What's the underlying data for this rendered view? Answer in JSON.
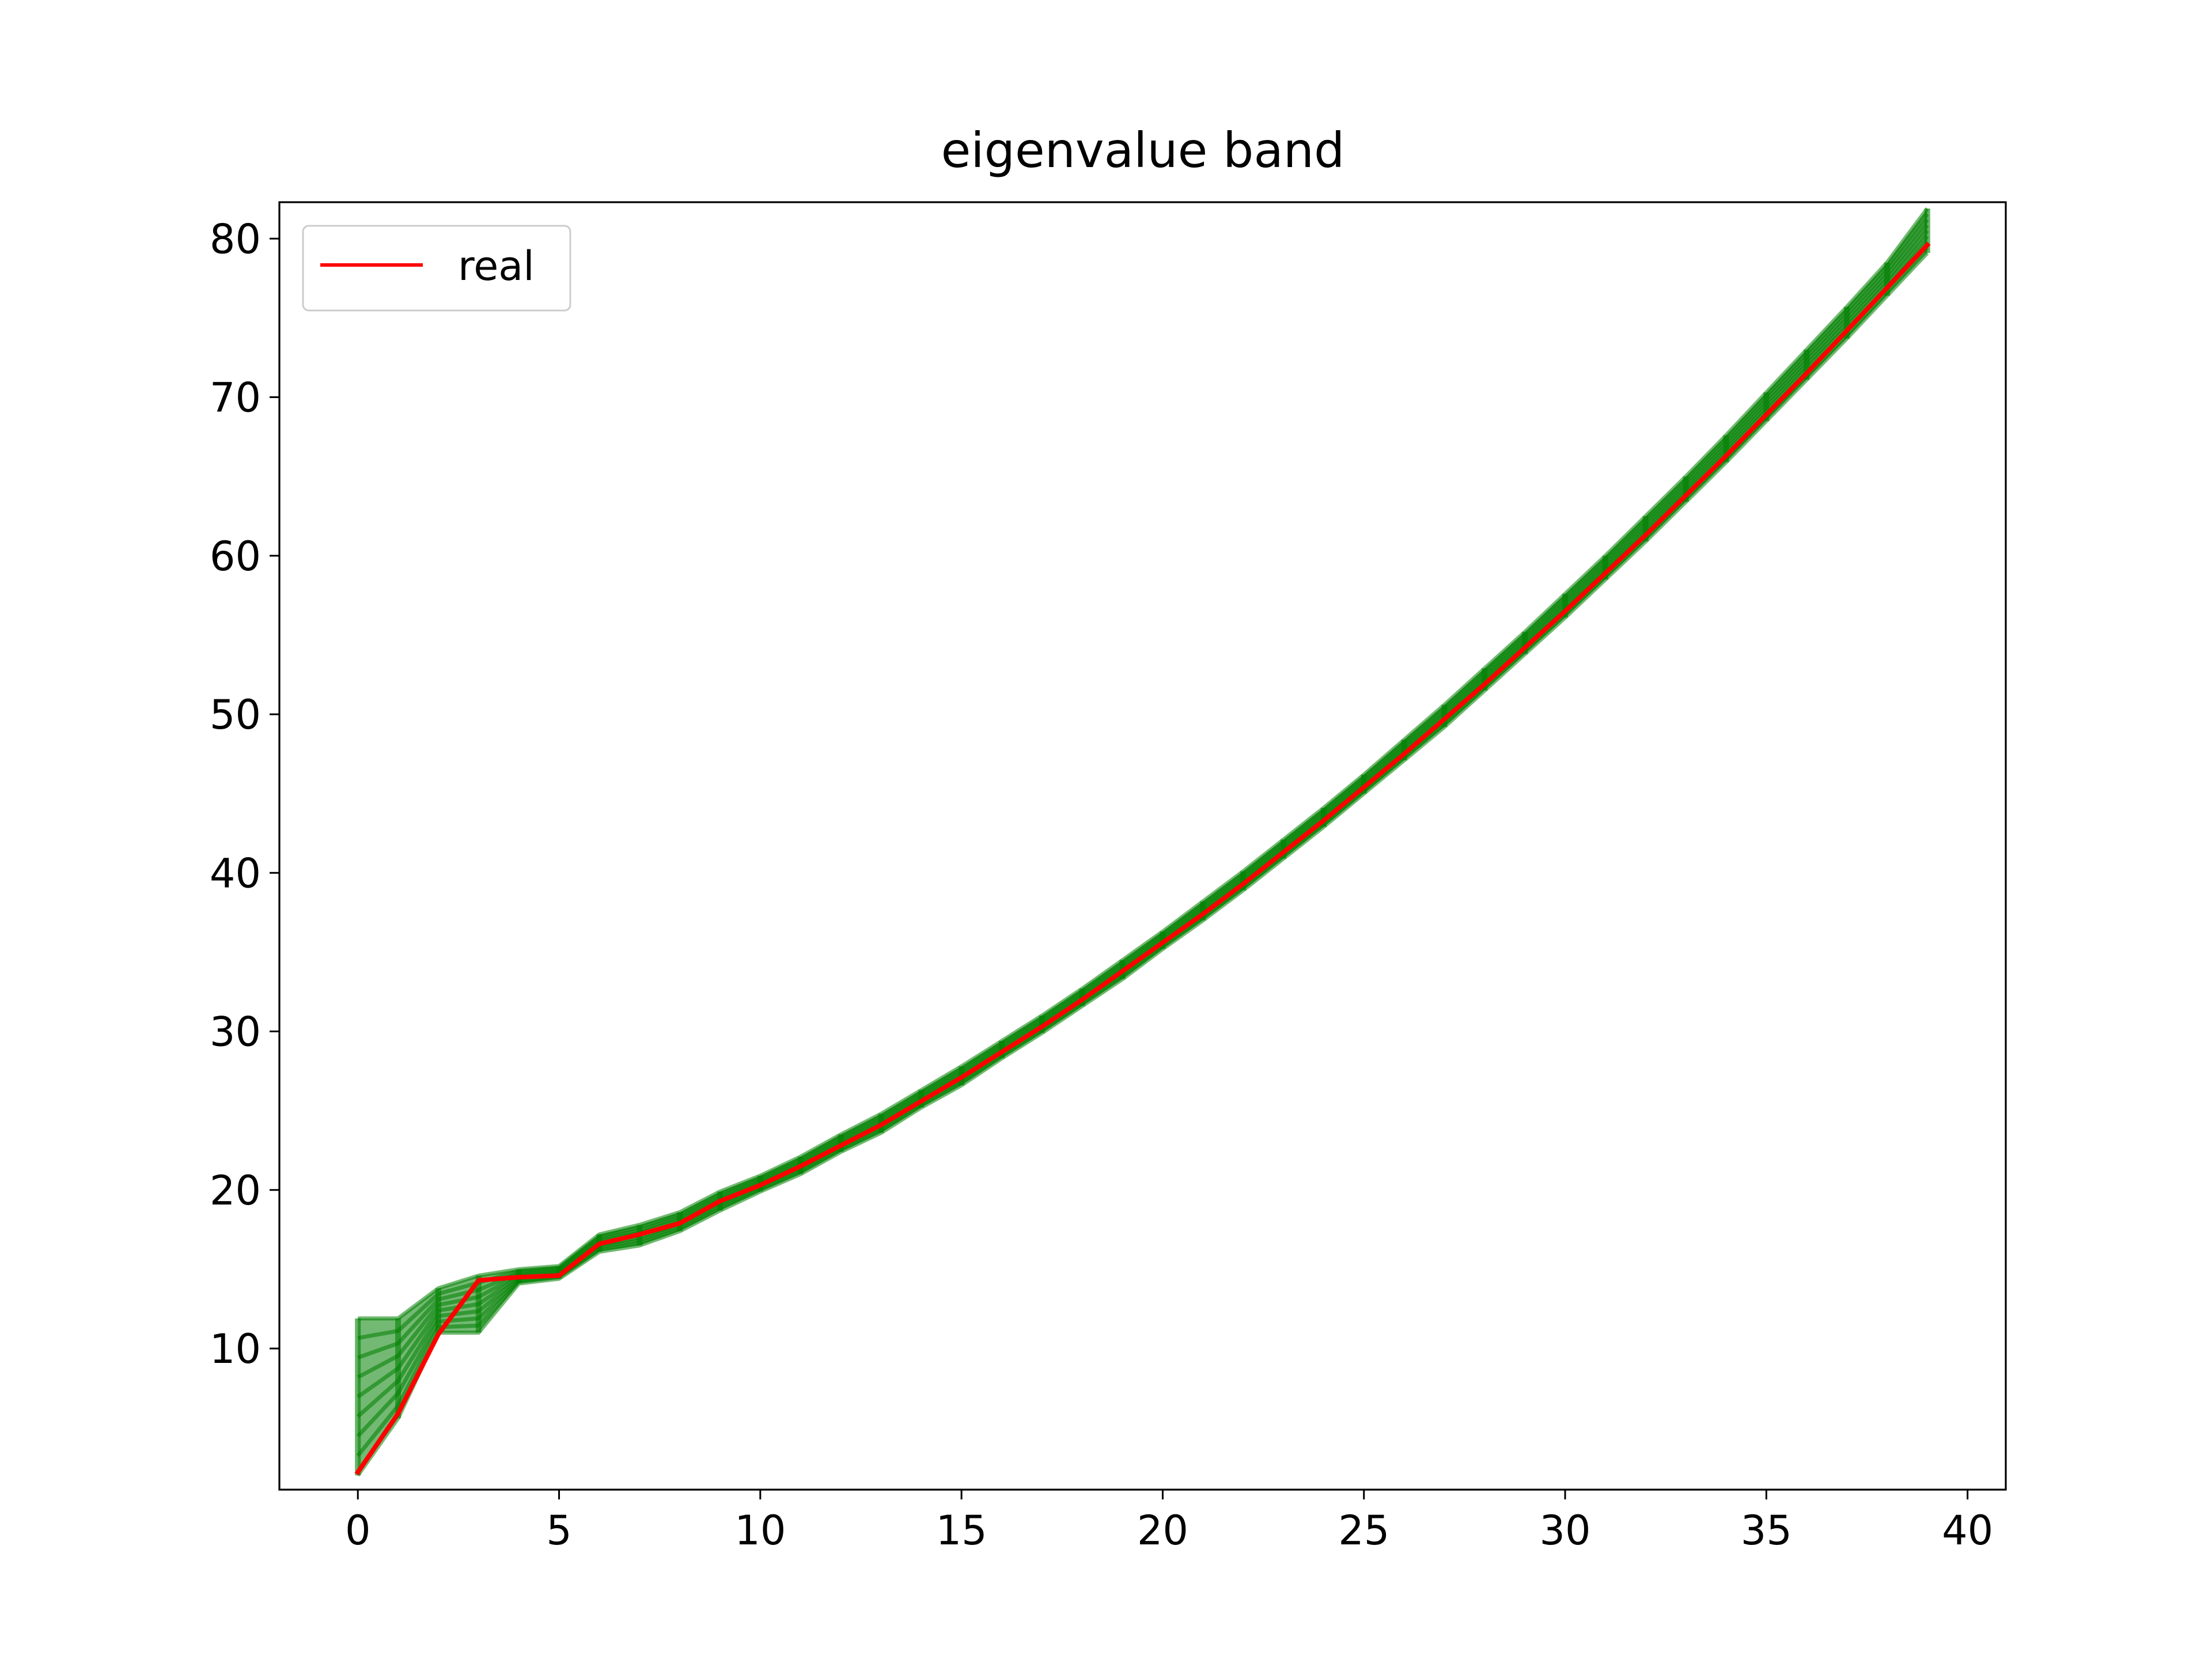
{
  "chart_data": {
    "type": "line",
    "title": "eigenvalue band",
    "xlabel": "",
    "ylabel": "",
    "xlim": [
      -1.95,
      40.95
    ],
    "ylim": [
      1.1,
      82.3
    ],
    "x_ticks": [
      0,
      5,
      10,
      15,
      20,
      25,
      30,
      35,
      40
    ],
    "y_ticks": [
      10,
      20,
      30,
      40,
      50,
      60,
      70,
      80
    ],
    "legend": {
      "placement": "upper-left",
      "entries": [
        {
          "label": "real",
          "color": "#ff0000"
        }
      ]
    },
    "colors": {
      "band": "#008000",
      "real": "#ff0000",
      "axes": "#000000"
    },
    "x": [
      0,
      1,
      2,
      3,
      4,
      5,
      6,
      7,
      8,
      9,
      10,
      11,
      12,
      13,
      14,
      15,
      16,
      17,
      18,
      19,
      20,
      21,
      22,
      23,
      24,
      25,
      26,
      27,
      28,
      29,
      30,
      31,
      32,
      33,
      34,
      35,
      36,
      37,
      38,
      39
    ],
    "series": [
      {
        "name": "real",
        "values": [
          2.2,
          5.9,
          10.9,
          14.3,
          14.5,
          14.6,
          16.6,
          17.2,
          17.9,
          19.3,
          20.3,
          21.5,
          22.8,
          24.1,
          25.6,
          27.1,
          28.7,
          30.3,
          32.0,
          33.8,
          35.6,
          37.4,
          39.3,
          41.3,
          43.3,
          45.4,
          47.5,
          49.7,
          51.9,
          54.2,
          56.5,
          58.9,
          61.3,
          63.8,
          66.3,
          68.9,
          71.5,
          74.2,
          76.9,
          79.6
        ]
      }
    ],
    "band": {
      "name": "eigenvalue band",
      "lower": [
        2.0,
        5.6,
        11.0,
        11.0,
        14.1,
        14.4,
        16.1,
        16.5,
        17.4,
        18.7,
        19.9,
        21.0,
        22.4,
        23.6,
        25.2,
        26.6,
        28.3,
        29.9,
        31.6,
        33.3,
        35.2,
        37.0,
        38.9,
        40.9,
        42.9,
        45.0,
        47.1,
        49.2,
        51.5,
        53.8,
        56.1,
        58.5,
        60.9,
        63.4,
        65.9,
        68.5,
        71.1,
        73.7,
        76.4,
        79.1
      ],
      "upper": [
        11.9,
        11.9,
        13.8,
        14.6,
        15.0,
        15.2,
        17.2,
        17.8,
        18.6,
        19.9,
        20.9,
        22.1,
        23.5,
        24.8,
        26.3,
        27.8,
        29.4,
        31.0,
        32.7,
        34.5,
        36.3,
        38.2,
        40.1,
        42.1,
        44.1,
        46.2,
        48.4,
        50.6,
        52.9,
        55.2,
        57.6,
        60.0,
        62.5,
        65.0,
        67.6,
        70.3,
        73.0,
        75.7,
        78.5,
        81.9
      ]
    }
  }
}
